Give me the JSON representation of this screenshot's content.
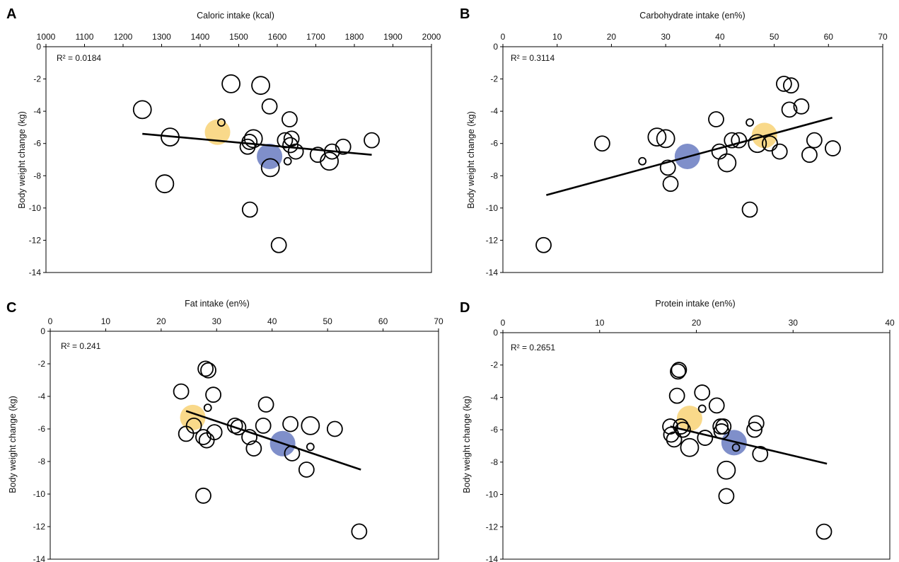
{
  "chart_data": [
    {
      "panel": "A",
      "type": "scatter",
      "xlabel": "Caloric intake (kcal)",
      "ylabel": "Body weight change (kg)",
      "xlim": [
        1000,
        2000
      ],
      "ylim": [
        -14,
        0
      ],
      "xticks": [
        1000,
        1100,
        1200,
        1300,
        1400,
        1500,
        1600,
        1700,
        1800,
        1900,
        2000
      ],
      "yticks": [
        0,
        -2,
        -4,
        -6,
        -8,
        -10,
        -12,
        -14
      ],
      "x_axis_position": "top",
      "grid": false,
      "annotation": "R² = 0.0184",
      "trendline": {
        "x": [
          1250,
          1845
        ],
        "y": [
          -5.4,
          -6.7
        ]
      },
      "points": [
        {
          "x": 1250,
          "y": -3.9,
          "size": "medium"
        },
        {
          "x": 1322,
          "y": -5.6,
          "size": "medium"
        },
        {
          "x": 1308,
          "y": -8.5,
          "size": "medium"
        },
        {
          "x": 1480,
          "y": -2.3,
          "size": "medium"
        },
        {
          "x": 1557,
          "y": -2.4,
          "size": "medium"
        },
        {
          "x": 1580,
          "y": -3.7,
          "size": "small"
        },
        {
          "x": 1632,
          "y": -4.5,
          "size": "small"
        },
        {
          "x": 1538,
          "y": -5.7,
          "size": "medium"
        },
        {
          "x": 1523,
          "y": -6.2,
          "size": "small"
        },
        {
          "x": 1528,
          "y": -5.9,
          "size": "small"
        },
        {
          "x": 1582,
          "y": -7.5,
          "size": "medium"
        },
        {
          "x": 1529,
          "y": -10.1,
          "size": "small"
        },
        {
          "x": 1604,
          "y": -12.3,
          "size": "small"
        },
        {
          "x": 1620,
          "y": -5.8,
          "size": "small"
        },
        {
          "x": 1637,
          "y": -5.7,
          "size": "small"
        },
        {
          "x": 1634,
          "y": -6.1,
          "size": "small"
        },
        {
          "x": 1648,
          "y": -6.5,
          "size": "small"
        },
        {
          "x": 1627,
          "y": -7.1,
          "size": "tiny"
        },
        {
          "x": 1705,
          "y": -6.7,
          "size": "small"
        },
        {
          "x": 1735,
          "y": -7.1,
          "size": "medium"
        },
        {
          "x": 1742,
          "y": -6.5,
          "size": "small"
        },
        {
          "x": 1771,
          "y": -6.2,
          "size": "small"
        },
        {
          "x": 1845,
          "y": -5.8,
          "size": "small"
        },
        {
          "x": 1455,
          "y": -4.7,
          "size": "tiny"
        }
      ],
      "highlights": [
        {
          "x": 1445,
          "y": -5.3,
          "color": "#f9d98a"
        },
        {
          "x": 1580,
          "y": -6.8,
          "color": "#7f8fca"
        }
      ]
    },
    {
      "panel": "B",
      "type": "scatter",
      "xlabel": "Carbohydrate intake (en%)",
      "ylabel": "Body weight change (kg)",
      "xlim": [
        0,
        70
      ],
      "ylim": [
        -14,
        0
      ],
      "xticks": [
        0,
        10,
        20,
        30,
        40,
        50,
        60,
        70
      ],
      "yticks": [
        0,
        -2,
        -4,
        -6,
        -8,
        -10,
        -12,
        -14
      ],
      "x_axis_position": "top",
      "grid": false,
      "annotation": "R² = 0.3114",
      "trendline": {
        "x": [
          8,
          60.7
        ],
        "y": [
          -9.2,
          -4.4
        ]
      },
      "points": [
        {
          "x": 7.5,
          "y": -12.3,
          "size": "small"
        },
        {
          "x": 18.3,
          "y": -6.0,
          "size": "small"
        },
        {
          "x": 25.7,
          "y": -7.1,
          "size": "tiny"
        },
        {
          "x": 28.4,
          "y": -5.6,
          "size": "medium"
        },
        {
          "x": 30.0,
          "y": -5.7,
          "size": "medium"
        },
        {
          "x": 30.4,
          "y": -7.5,
          "size": "small"
        },
        {
          "x": 30.9,
          "y": -8.5,
          "size": "small"
        },
        {
          "x": 39.3,
          "y": -4.5,
          "size": "small"
        },
        {
          "x": 39.9,
          "y": -6.5,
          "size": "small"
        },
        {
          "x": 41.3,
          "y": -7.2,
          "size": "medium"
        },
        {
          "x": 42.2,
          "y": -5.8,
          "size": "small"
        },
        {
          "x": 43.5,
          "y": -5.8,
          "size": "small"
        },
        {
          "x": 45.5,
          "y": -4.7,
          "size": "tiny"
        },
        {
          "x": 45.5,
          "y": -10.1,
          "size": "small"
        },
        {
          "x": 46.9,
          "y": -6.0,
          "size": "medium"
        },
        {
          "x": 49.2,
          "y": -6.0,
          "size": "small"
        },
        {
          "x": 51.0,
          "y": -6.5,
          "size": "small"
        },
        {
          "x": 51.8,
          "y": -2.3,
          "size": "small"
        },
        {
          "x": 53.1,
          "y": -2.4,
          "size": "small"
        },
        {
          "x": 52.8,
          "y": -3.9,
          "size": "small"
        },
        {
          "x": 55.0,
          "y": -3.7,
          "size": "small"
        },
        {
          "x": 56.5,
          "y": -6.7,
          "size": "small"
        },
        {
          "x": 57.4,
          "y": -5.8,
          "size": "small"
        },
        {
          "x": 60.8,
          "y": -6.3,
          "size": "small"
        }
      ],
      "highlights": [
        {
          "x": 48.2,
          "y": -5.5,
          "color": "#f9d98a"
        },
        {
          "x": 34.0,
          "y": -6.8,
          "color": "#7f8fca"
        }
      ]
    },
    {
      "panel": "C",
      "type": "scatter",
      "xlabel": "Fat intake (en%)",
      "ylabel": "Body weight change (kg)",
      "xlim": [
        0,
        70
      ],
      "ylim": [
        -14,
        0
      ],
      "xticks": [
        0,
        10,
        20,
        30,
        40,
        50,
        60,
        70
      ],
      "yticks": [
        0,
        -2,
        -4,
        -6,
        -8,
        -10,
        -12,
        -14
      ],
      "x_axis_position": "top",
      "grid": false,
      "annotation": "R² = 0.241",
      "trendline": {
        "x": [
          24.5,
          56
        ],
        "y": [
          -4.9,
          -8.5
        ]
      },
      "points": [
        {
          "x": 23.6,
          "y": -3.7,
          "size": "small"
        },
        {
          "x": 24.5,
          "y": -6.3,
          "size": "small"
        },
        {
          "x": 25.9,
          "y": -5.8,
          "size": "small"
        },
        {
          "x": 27.6,
          "y": -10.1,
          "size": "small"
        },
        {
          "x": 27.6,
          "y": -6.5,
          "size": "small"
        },
        {
          "x": 28.0,
          "y": -2.3,
          "size": "small"
        },
        {
          "x": 28.2,
          "y": -6.7,
          "size": "small"
        },
        {
          "x": 28.4,
          "y": -4.7,
          "size": "tiny"
        },
        {
          "x": 28.5,
          "y": -2.4,
          "size": "small"
        },
        {
          "x": 29.4,
          "y": -3.9,
          "size": "small"
        },
        {
          "x": 29.6,
          "y": -6.2,
          "size": "small"
        },
        {
          "x": 33.3,
          "y": -5.8,
          "size": "small"
        },
        {
          "x": 33.9,
          "y": -5.9,
          "size": "small"
        },
        {
          "x": 35.9,
          "y": -6.5,
          "size": "small"
        },
        {
          "x": 36.7,
          "y": -7.2,
          "size": "small"
        },
        {
          "x": 38.4,
          "y": -5.8,
          "size": "small"
        },
        {
          "x": 38.9,
          "y": -4.5,
          "size": "small"
        },
        {
          "x": 43.3,
          "y": -5.7,
          "size": "small"
        },
        {
          "x": 43.6,
          "y": -7.5,
          "size": "small"
        },
        {
          "x": 46.2,
          "y": -8.5,
          "size": "small"
        },
        {
          "x": 46.9,
          "y": -7.1,
          "size": "tiny"
        },
        {
          "x": 46.9,
          "y": -5.8,
          "size": "medium"
        },
        {
          "x": 51.3,
          "y": -6.0,
          "size": "small"
        },
        {
          "x": 55.7,
          "y": -12.3,
          "size": "small"
        }
      ],
      "highlights": [
        {
          "x": 25.7,
          "y": -5.3,
          "color": "#f9d98a"
        },
        {
          "x": 41.9,
          "y": -6.9,
          "color": "#7f8fca"
        }
      ]
    },
    {
      "panel": "D",
      "type": "scatter",
      "xlabel": "Protein intake (en%)",
      "ylabel": "Body weight change (kg)",
      "xlim": [
        0,
        40
      ],
      "ylim": [
        -14,
        0
      ],
      "xticks": [
        0,
        10,
        20,
        30,
        40
      ],
      "yticks": [
        0,
        -2,
        -4,
        -6,
        -8,
        -10,
        -12,
        -14
      ],
      "x_axis_position": "top",
      "grid": false,
      "annotation": "R² = 0.2651",
      "trendline": {
        "x": [
          17.3,
          33.5
        ],
        "y": [
          -5.8,
          -8.1
        ]
      },
      "points": [
        {
          "x": 17.3,
          "y": -5.8,
          "size": "small"
        },
        {
          "x": 17.4,
          "y": -6.3,
          "size": "small"
        },
        {
          "x": 17.7,
          "y": -6.6,
          "size": "small"
        },
        {
          "x": 18.1,
          "y": -2.4,
          "size": "small"
        },
        {
          "x": 18.2,
          "y": -2.3,
          "size": "small"
        },
        {
          "x": 18.0,
          "y": -3.9,
          "size": "small"
        },
        {
          "x": 18.4,
          "y": -5.8,
          "size": "small"
        },
        {
          "x": 18.6,
          "y": -6.0,
          "size": "small"
        },
        {
          "x": 19.3,
          "y": -7.1,
          "size": "medium"
        },
        {
          "x": 20.6,
          "y": -4.7,
          "size": "tiny"
        },
        {
          "x": 20.6,
          "y": -3.7,
          "size": "small"
        },
        {
          "x": 20.9,
          "y": -6.5,
          "size": "small"
        },
        {
          "x": 22.1,
          "y": -4.5,
          "size": "small"
        },
        {
          "x": 22.5,
          "y": -5.8,
          "size": "small"
        },
        {
          "x": 22.6,
          "y": -6.1,
          "size": "small"
        },
        {
          "x": 22.8,
          "y": -5.8,
          "size": "small"
        },
        {
          "x": 23.1,
          "y": -8.5,
          "size": "medium"
        },
        {
          "x": 23.1,
          "y": -10.1,
          "size": "small"
        },
        {
          "x": 24.1,
          "y": -7.1,
          "size": "tiny"
        },
        {
          "x": 26.0,
          "y": -6.0,
          "size": "small"
        },
        {
          "x": 26.2,
          "y": -5.6,
          "size": "small"
        },
        {
          "x": 26.6,
          "y": -7.5,
          "size": "small"
        },
        {
          "x": 33.2,
          "y": -12.3,
          "size": "small"
        }
      ],
      "highlights": [
        {
          "x": 19.3,
          "y": -5.3,
          "color": "#f9d98a"
        },
        {
          "x": 23.9,
          "y": -6.8,
          "color": "#7f8fca"
        }
      ]
    }
  ]
}
